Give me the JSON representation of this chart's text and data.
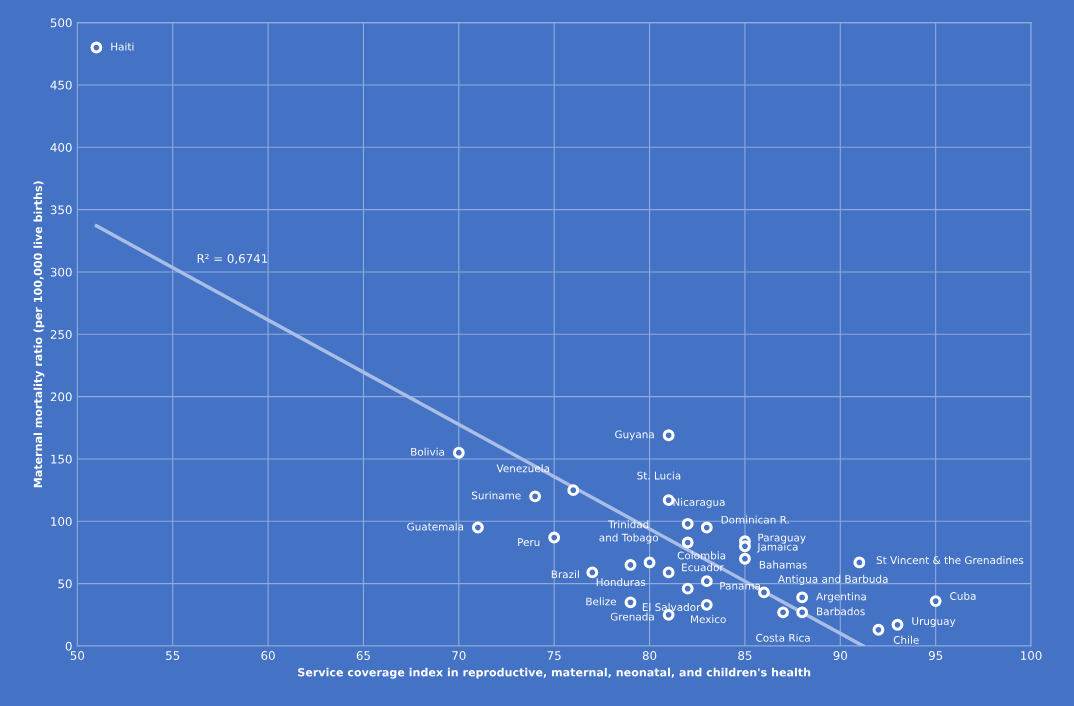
{
  "chart_data": {
    "type": "scatter",
    "xlabel": "Service coverage index in reproductive, maternal, neonatal, and children's health",
    "ylabel": "Maternal mortality ratio (per 100,000 live births)",
    "xlim": [
      50,
      100
    ],
    "xticks": [
      50,
      55,
      60,
      65,
      70,
      75,
      80,
      85,
      90,
      95,
      100
    ],
    "ylim": [
      0,
      500
    ],
    "yticks": [
      0,
      50,
      100,
      150,
      200,
      250,
      300,
      350,
      400,
      450,
      500
    ],
    "grid": true,
    "marker": "circle",
    "legend": false,
    "series": [
      {
        "color": "#ffffff",
        "x": [
          51,
          70,
          76,
          74,
          71,
          75,
          81,
          81,
          82,
          83,
          82,
          80,
          79,
          77,
          81,
          83,
          82,
          79,
          81,
          83,
          85,
          85,
          85,
          91,
          86,
          88,
          88,
          87,
          95,
          93,
          92
        ],
        "values": [
          480,
          155,
          125,
          120,
          95,
          87,
          169,
          117,
          98,
          95,
          83,
          67,
          65,
          59,
          59,
          52,
          46,
          35,
          25,
          33,
          84,
          80,
          70,
          67,
          43,
          39,
          27,
          27,
          36,
          17,
          13
        ]
      },
      {
        "type": "line",
        "marker": "none",
        "color": "#a9bde6",
        "x": [
          51,
          91.2
        ],
        "values": [
          337,
          0
        ]
      }
    ],
    "annotations": [
      {
        "text": "Haiti",
        "x": 51,
        "y": 480
      },
      {
        "text": "Bolivia",
        "x": 70,
        "y": 155
      },
      {
        "text": "Venezuela",
        "x": 76,
        "y": 125
      },
      {
        "text": "Suriname",
        "x": 74,
        "y": 120
      },
      {
        "text": "Guatemala",
        "x": 71,
        "y": 95
      },
      {
        "text": "Peru",
        "x": 75,
        "y": 87
      },
      {
        "text": "Guyana",
        "x": 81,
        "y": 169
      },
      {
        "text": "St. Lucia",
        "x": 81,
        "y": 117
      },
      {
        "text": "Nicaragua",
        "x": 82,
        "y": 98
      },
      {
        "text": "Dominican R.",
        "x": 83,
        "y": 95
      },
      {
        "text": "Trinidad\nand Tobago",
        "x": 80,
        "y": 67
      },
      {
        "text": "Colombia",
        "x": 82,
        "y": 83
      },
      {
        "text": "Honduras",
        "x": 79,
        "y": 65
      },
      {
        "text": "Brazil",
        "x": 77,
        "y": 59
      },
      {
        "text": "Ecuador",
        "x": 81,
        "y": 59
      },
      {
        "text": "Panama",
        "x": 83,
        "y": 52
      },
      {
        "text": "El Salvador",
        "x": 82,
        "y": 46
      },
      {
        "text": "Belize",
        "x": 79,
        "y": 35
      },
      {
        "text": "Grenada",
        "x": 81,
        "y": 25
      },
      {
        "text": "Mexico",
        "x": 83,
        "y": 33
      },
      {
        "text": "Paraguay",
        "x": 85,
        "y": 84
      },
      {
        "text": "Jamaica",
        "x": 85,
        "y": 80
      },
      {
        "text": "Bahamas",
        "x": 85,
        "y": 70
      },
      {
        "text": "St Vincent & the Grenadines",
        "x": 91,
        "y": 67
      },
      {
        "text": "Antigua and Barbuda",
        "x": 86,
        "y": 43
      },
      {
        "text": "Argentina",
        "x": 88,
        "y": 39
      },
      {
        "text": "Barbados",
        "x": 88,
        "y": 27
      },
      {
        "text": "Costa Rica",
        "x": 87,
        "y": 27
      },
      {
        "text": "Cuba",
        "x": 95,
        "y": 36
      },
      {
        "text": "Uruguay",
        "x": 93,
        "y": 17
      },
      {
        "text": "Chile",
        "x": 92,
        "y": 13
      },
      "R² = 0,6741"
    ]
  }
}
